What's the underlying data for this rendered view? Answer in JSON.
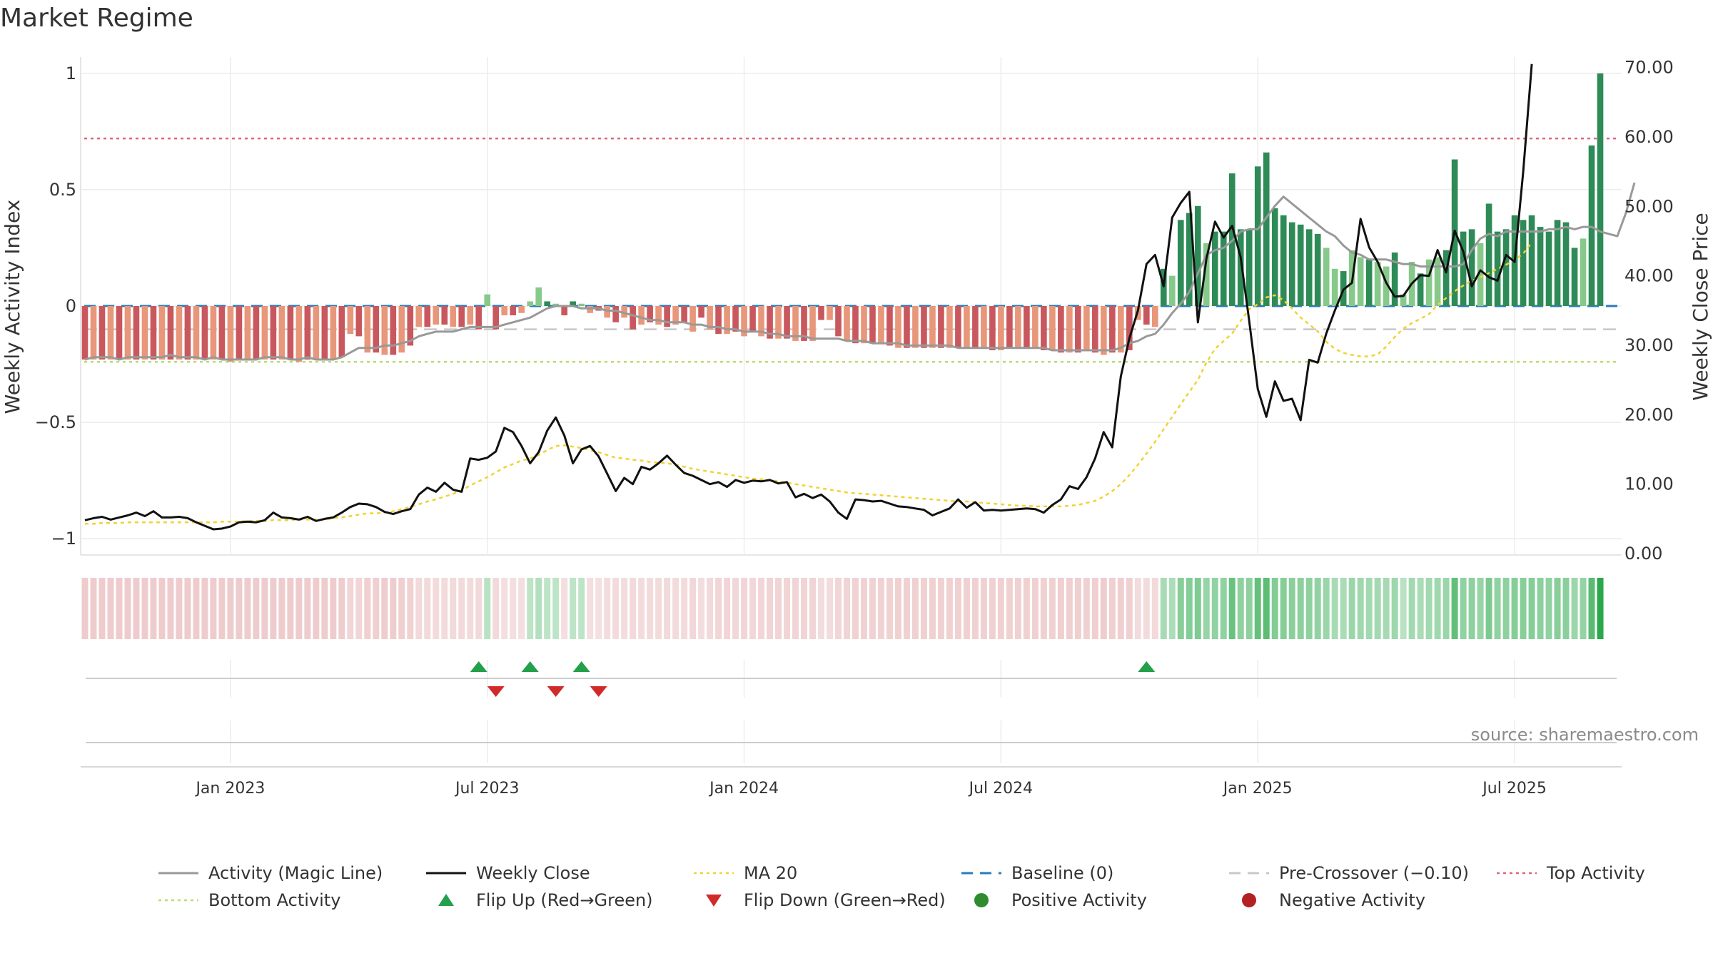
{
  "title": "Market Regime",
  "source": "source: sharemaestro.com",
  "colors": {
    "positive_strong": "#2e8b57",
    "positive_weak": "#86c98a",
    "negative_strong": "#c9585e",
    "negative_weak": "#e8977a",
    "activity_line": "#999999",
    "close_line": "#111111",
    "ma_line": "#f2d230",
    "baseline": "#2b7bb9",
    "pre_crossover": "#c8c8c8",
    "top_activity": "#e0657a",
    "bottom_activity": "#b9dc6e",
    "flip_up": "#22a04b",
    "flip_down": "#d12a2a"
  },
  "chart_data": {
    "type": "bar",
    "y_left_label": "Weekly Activity Index",
    "y_right_label": "Weekly Close Price",
    "y_left_ticks": [
      "1",
      "0.5",
      "0",
      "−0.5",
      "−1"
    ],
    "y_left_tick_values": [
      1,
      0.5,
      0,
      -0.5,
      -1
    ],
    "y_right_ticks": [
      "70.00",
      "60.00",
      "50.00",
      "40.00",
      "30.00",
      "20.00",
      "10.00",
      "0.00"
    ],
    "y_right_tick_values": [
      70,
      60,
      50,
      40,
      30,
      20,
      10,
      0
    ],
    "ylim_left": [
      -1.07,
      1.07
    ],
    "ylim_right": [
      -0.2,
      71.5
    ],
    "x_ticks": [
      "Jan 2023",
      "Jul 2023",
      "Jan 2024",
      "Jul 2024",
      "Jan 2025",
      "Jul 2025"
    ],
    "x_tick_weeks": [
      17,
      47,
      77,
      107,
      137,
      167
    ],
    "x_range_weeks": [
      -0.5,
      179.5
    ],
    "top_activity": 0.72,
    "bottom_activity": -0.24,
    "pre_crossover": -0.1,
    "baseline": 0,
    "series": [
      {
        "name": "Weekly Activity Index",
        "kind": "bar",
        "values": [
          -0.23,
          -0.23,
          -0.23,
          -0.23,
          -0.23,
          -0.23,
          -0.23,
          -0.23,
          -0.23,
          -0.23,
          -0.23,
          -0.23,
          -0.23,
          -0.23,
          -0.23,
          -0.23,
          -0.23,
          -0.24,
          -0.23,
          -0.23,
          -0.23,
          -0.23,
          -0.23,
          -0.23,
          -0.23,
          -0.24,
          -0.23,
          -0.23,
          -0.23,
          -0.23,
          -0.22,
          -0.12,
          -0.13,
          -0.2,
          -0.2,
          -0.21,
          -0.21,
          -0.2,
          -0.17,
          -0.09,
          -0.09,
          -0.08,
          -0.08,
          -0.09,
          -0.09,
          -0.08,
          -0.1,
          0.05,
          -0.1,
          -0.04,
          -0.04,
          -0.03,
          0.02,
          0.08,
          0.02,
          0.01,
          -0.04,
          0.02,
          0.01,
          -0.03,
          -0.02,
          -0.05,
          -0.07,
          -0.05,
          -0.1,
          -0.08,
          -0.07,
          -0.08,
          -0.09,
          -0.08,
          -0.07,
          -0.11,
          -0.05,
          -0.1,
          -0.12,
          -0.12,
          -0.11,
          -0.13,
          -0.11,
          -0.13,
          -0.14,
          -0.14,
          -0.14,
          -0.15,
          -0.15,
          -0.15,
          -0.06,
          -0.06,
          -0.13,
          -0.15,
          -0.16,
          -0.16,
          -0.16,
          -0.16,
          -0.17,
          -0.18,
          -0.18,
          -0.18,
          -0.18,
          -0.18,
          -0.18,
          -0.18,
          -0.18,
          -0.18,
          -0.18,
          -0.18,
          -0.19,
          -0.19,
          -0.18,
          -0.18,
          -0.18,
          -0.18,
          -0.19,
          -0.19,
          -0.2,
          -0.2,
          -0.2,
          -0.19,
          -0.2,
          -0.21,
          -0.2,
          -0.2,
          -0.19,
          -0.06,
          -0.08,
          -0.09,
          0.16,
          0.13,
          0.37,
          0.4,
          0.43,
          0.27,
          0.32,
          0.32,
          0.57,
          0.33,
          0.33,
          0.6,
          0.66,
          0.42,
          0.39,
          0.36,
          0.35,
          0.33,
          0.31,
          0.25,
          0.16,
          0.15,
          0.24,
          0.21,
          0.2,
          0.19,
          0.17,
          0.23,
          0.05,
          0.19,
          0.14,
          0.2,
          0.21,
          0.24,
          0.63,
          0.32,
          0.33,
          0.27,
          0.44,
          0.32,
          0.33,
          0.39,
          0.37,
          0.39,
          0.34,
          0.32,
          0.37,
          0.36,
          0.25,
          0.29,
          0.69,
          1.0
        ]
      },
      {
        "name": "Activity (Magic Line)",
        "kind": "line",
        "axis": "left",
        "values": [
          -0.23,
          -0.22,
          -0.22,
          -0.22,
          -0.23,
          -0.22,
          -0.22,
          -0.22,
          -0.22,
          -0.22,
          -0.21,
          -0.22,
          -0.22,
          -0.22,
          -0.23,
          -0.22,
          -0.23,
          -0.23,
          -0.23,
          -0.23,
          -0.23,
          -0.22,
          -0.22,
          -0.22,
          -0.23,
          -0.23,
          -0.22,
          -0.23,
          -0.23,
          -0.23,
          -0.22,
          -0.2,
          -0.18,
          -0.18,
          -0.18,
          -0.17,
          -0.17,
          -0.16,
          -0.15,
          -0.13,
          -0.12,
          -0.11,
          -0.11,
          -0.11,
          -0.1,
          -0.09,
          -0.09,
          -0.09,
          -0.09,
          -0.08,
          -0.07,
          -0.06,
          -0.05,
          -0.03,
          -0.01,
          0,
          0,
          0,
          -0.01,
          -0.01,
          -0.01,
          -0.02,
          -0.02,
          -0.03,
          -0.04,
          -0.05,
          -0.06,
          -0.06,
          -0.07,
          -0.07,
          -0.07,
          -0.08,
          -0.08,
          -0.09,
          -0.09,
          -0.1,
          -0.1,
          -0.11,
          -0.11,
          -0.11,
          -0.12,
          -0.12,
          -0.13,
          -0.13,
          -0.13,
          -0.14,
          -0.14,
          -0.14,
          -0.14,
          -0.15,
          -0.15,
          -0.15,
          -0.16,
          -0.16,
          -0.16,
          -0.16,
          -0.17,
          -0.17,
          -0.17,
          -0.17,
          -0.17,
          -0.17,
          -0.18,
          -0.18,
          -0.18,
          -0.18,
          -0.18,
          -0.18,
          -0.18,
          -0.18,
          -0.18,
          -0.18,
          -0.18,
          -0.19,
          -0.19,
          -0.19,
          -0.19,
          -0.19,
          -0.19,
          -0.19,
          -0.19,
          -0.18,
          -0.16,
          -0.15,
          -0.13,
          -0.12,
          -0.08,
          -0.03,
          0.01,
          0.06,
          0.14,
          0.22,
          0.24,
          0.25,
          0.28,
          0.32,
          0.33,
          0.33,
          0.38,
          0.43,
          0.47,
          0.44,
          0.41,
          0.38,
          0.35,
          0.32,
          0.3,
          0.26,
          0.23,
          0.22,
          0.2,
          0.2,
          0.2,
          0.19,
          0.18,
          0.18,
          0.17,
          0.17,
          0.17,
          0.17,
          0.17,
          0.18,
          0.24,
          0.29,
          0.31,
          0.3,
          0.32,
          0.32,
          0.32,
          0.32,
          0.32,
          0.33,
          0.33,
          0.34,
          0.33,
          0.34,
          0.34,
          0.32,
          0.31,
          0.3,
          0.4,
          0.53
        ]
      },
      {
        "name": "Weekly Close",
        "kind": "line",
        "axis": "right",
        "values": [
          4.8,
          5.1,
          5.3,
          4.9,
          5.2,
          5.5,
          5.9,
          5.4,
          6.1,
          5.2,
          5.2,
          5.3,
          5.1,
          4.5,
          4.0,
          3.5,
          3.6,
          3.9,
          4.5,
          4.6,
          4.5,
          4.8,
          5.9,
          5.2,
          5.1,
          4.9,
          5.3,
          4.7,
          5.0,
          5.2,
          5.9,
          6.7,
          7.2,
          7.1,
          6.7,
          6.0,
          5.7,
          6.1,
          6.4,
          8.5,
          9.5,
          8.9,
          10.2,
          9.2,
          8.9,
          13.7,
          13.5,
          13.8,
          14.7,
          18.1,
          17.5,
          15.5,
          13.0,
          14.6,
          17.7,
          19.6,
          17.0,
          13.0,
          15.0,
          15.5,
          14.0,
          11.5,
          9.0,
          10.9,
          10.0,
          12.5,
          12.1,
          13.0,
          14.1,
          12.8,
          11.6,
          11.2,
          10.6,
          10.0,
          10.3,
          9.6,
          10.6,
          10.2,
          10.5,
          10.4,
          10.6,
          10.1,
          10.3,
          8.1,
          8.6,
          8.0,
          8.5,
          7.5,
          5.9,
          5.0,
          7.8,
          7.7,
          7.5,
          7.6,
          7.2,
          6.8,
          6.7,
          6.5,
          6.3,
          5.5,
          6.0,
          6.5,
          7.8,
          6.6,
          7.4,
          6.2,
          6.3,
          6.2,
          6.3,
          6.4,
          6.5,
          6.4,
          5.9,
          7.0,
          7.8,
          9.7,
          9.3,
          11.0,
          13.7,
          17.5,
          15.3,
          25.5,
          31.0,
          35.0,
          41.7,
          43.0,
          38.5,
          48.4,
          50.5,
          52.1,
          33.3,
          42.5,
          47.8,
          45.5,
          47.2,
          42.7,
          33.5,
          23.7,
          19.7,
          24.8,
          22.0,
          22.3,
          19.2,
          27.9,
          27.5,
          31.7,
          35.0,
          38.0,
          39.0,
          48.2,
          44.1,
          42.0,
          39.0,
          37.0,
          37.1,
          38.9,
          40.1,
          40.0,
          43.7,
          40.5,
          46.5,
          43.5,
          38.5,
          40.8,
          39.8,
          39.3,
          43.0,
          42.0,
          55.0,
          70.5
        ]
      },
      {
        "name": "MA 20",
        "kind": "line",
        "axis": "right",
        "values": [
          4.3,
          4.3,
          4.4,
          4.4,
          4.4,
          4.5,
          4.5,
          4.5,
          4.5,
          4.5,
          4.5,
          4.5,
          4.5,
          4.5,
          4.5,
          4.5,
          4.6,
          4.6,
          4.6,
          4.7,
          4.7,
          4.7,
          4.8,
          4.8,
          4.8,
          4.9,
          4.9,
          4.9,
          4.9,
          5.1,
          5.2,
          5.4,
          5.6,
          5.8,
          5.8,
          5.9,
          6.1,
          6.4,
          6.7,
          7.1,
          7.5,
          7.8,
          8.2,
          8.6,
          9.1,
          9.8,
          10.4,
          11.0,
          11.7,
          12.4,
          12.9,
          13.4,
          13.7,
          14.2,
          14.9,
          15.5,
          15.6,
          15.4,
          15.2,
          14.9,
          14.6,
          14.2,
          13.8,
          13.7,
          13.5,
          13.4,
          13.2,
          13.1,
          13.0,
          12.8,
          12.5,
          12.2,
          12.0,
          11.8,
          11.6,
          11.4,
          11.2,
          11.0,
          10.8,
          10.7,
          10.6,
          10.4,
          10.2,
          10.0,
          9.8,
          9.6,
          9.4,
          9.2,
          9.0,
          8.8,
          8.7,
          8.6,
          8.5,
          8.4,
          8.3,
          8.2,
          8.1,
          8.0,
          7.9,
          7.8,
          7.7,
          7.6,
          7.5,
          7.5,
          7.4,
          7.3,
          7.2,
          7.1,
          7.0,
          6.9,
          6.9,
          6.8,
          6.8,
          6.8,
          6.8,
          6.9,
          7.0,
          7.3,
          7.6,
          8.2,
          9.0,
          10.0,
          11.3,
          12.8,
          14.4,
          16.1,
          17.9,
          19.7,
          21.5,
          23.3,
          25.0,
          27.5,
          29.5,
          30.6,
          31.7,
          33.5,
          35.2,
          35.9,
          36.9,
          37.2,
          36.5,
          35.3,
          34.0,
          33.0,
          32.0,
          30.5,
          29.5,
          28.9,
          28.6,
          28.4,
          28.4,
          28.7,
          29.8,
          31.2,
          32.4,
          33.2,
          33.8,
          34.5,
          35.8,
          36.8,
          37.8,
          38.6,
          39.3,
          39.8,
          40.4,
          41.0,
          41.6,
          42.3,
          43.2,
          44.8
        ]
      },
      {
        "name": "Baseline (0)",
        "kind": "hline"
      },
      {
        "name": "Pre-Crossover (−0.10)",
        "kind": "hline"
      },
      {
        "name": "Top Activity",
        "kind": "hline"
      },
      {
        "name": "Bottom Activity",
        "kind": "hline"
      },
      {
        "name": "Flip Up (Red→Green)",
        "kind": "marker",
        "weeks": [
          46,
          52,
          58,
          124
        ]
      },
      {
        "name": "Flip Down (Green→Red)",
        "kind": "marker",
        "weeks": [
          48,
          55,
          60
        ]
      },
      {
        "name": "Positive Activity",
        "kind": "legend"
      },
      {
        "name": "Negative Activity",
        "kind": "legend"
      }
    ],
    "grid": true
  },
  "legend": [
    {
      "label": "Activity (Magic Line)",
      "icon": "solid-line",
      "color": "#999999"
    },
    {
      "label": "Weekly Close",
      "icon": "solid-line",
      "color": "#111111"
    },
    {
      "label": "MA 20",
      "icon": "dotted-line",
      "color": "#f2d230"
    },
    {
      "label": "Baseline (0)",
      "icon": "dashed-line",
      "color": "#2b7bb9"
    },
    {
      "label": "Pre-Crossover (−0.10)",
      "icon": "dashed-line",
      "color": "#c8c8c8"
    },
    {
      "label": "Top Activity",
      "icon": "dotted-line",
      "color": "#e0657a"
    },
    {
      "label": "Bottom Activity",
      "icon": "dotted-line",
      "color": "#b9dc6e"
    },
    {
      "label": "Flip Up (Red→Green)",
      "icon": "triangle-up",
      "color": "#22a04b"
    },
    {
      "label": "Flip Down (Green→Red)",
      "icon": "triangle-down",
      "color": "#d12a2a"
    },
    {
      "label": "Positive Activity",
      "icon": "dot",
      "color": "#2e8b2e"
    },
    {
      "label": "Negative Activity",
      "icon": "dot",
      "color": "#b22222"
    }
  ]
}
